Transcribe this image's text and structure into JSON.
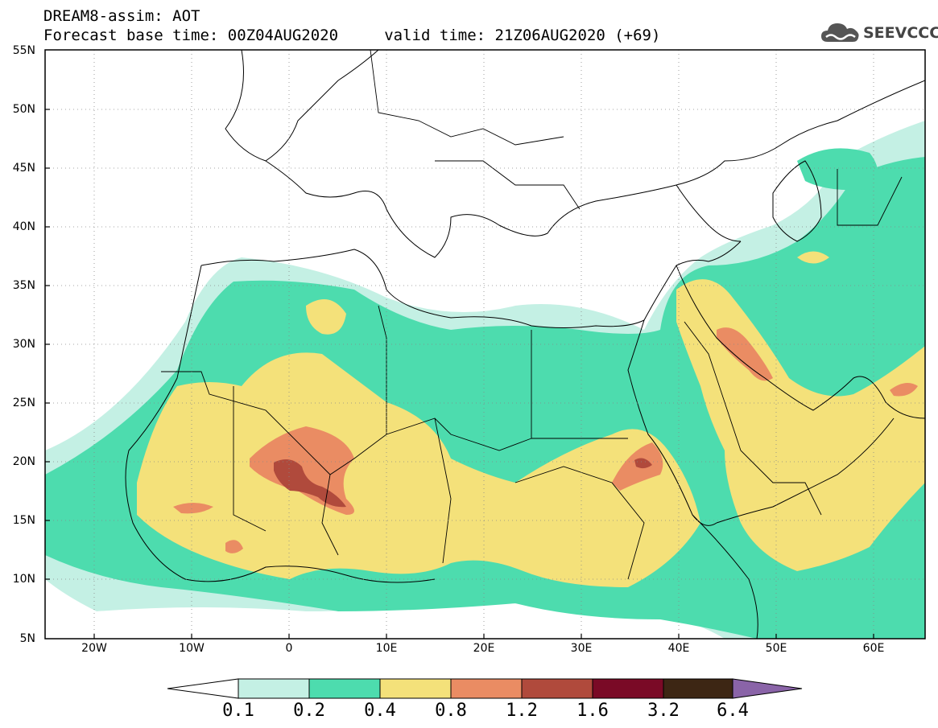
{
  "header": {
    "title_line1": "DREAM8-assim: AOT",
    "title_line2": "Forecast base time: 00Z04AUG2020     valid time: 21Z06AUG2020 (+69)"
  },
  "logo": {
    "text": "SEEVCCC",
    "icon": "cloud-icon"
  },
  "axes": {
    "lat_ticks": [
      "55N",
      "50N",
      "45N",
      "40N",
      "35N",
      "30N",
      "25N",
      "20N",
      "15N",
      "10N",
      "5N"
    ],
    "lon_ticks": [
      "20W",
      "10W",
      "0",
      "10E",
      "20E",
      "30E",
      "40E",
      "50E",
      "60E"
    ]
  },
  "colorbar": {
    "labels": [
      "0.1",
      "0.2",
      "0.4",
      "0.8",
      "1.2",
      "1.6",
      "3.2",
      "6.4"
    ],
    "colors": [
      "#ffffff",
      "#c4f0e4",
      "#4ddcae",
      "#f4e17a",
      "#ea8c63",
      "#b04a3c",
      "#7a0a26",
      "#3d2614",
      "#8a64a8"
    ]
  },
  "map_colors": {
    "c1": "#c4f0e4",
    "c2": "#4ddcae",
    "c3": "#f4e17a",
    "c4": "#ea8c63",
    "c5": "#b04a3c"
  }
}
